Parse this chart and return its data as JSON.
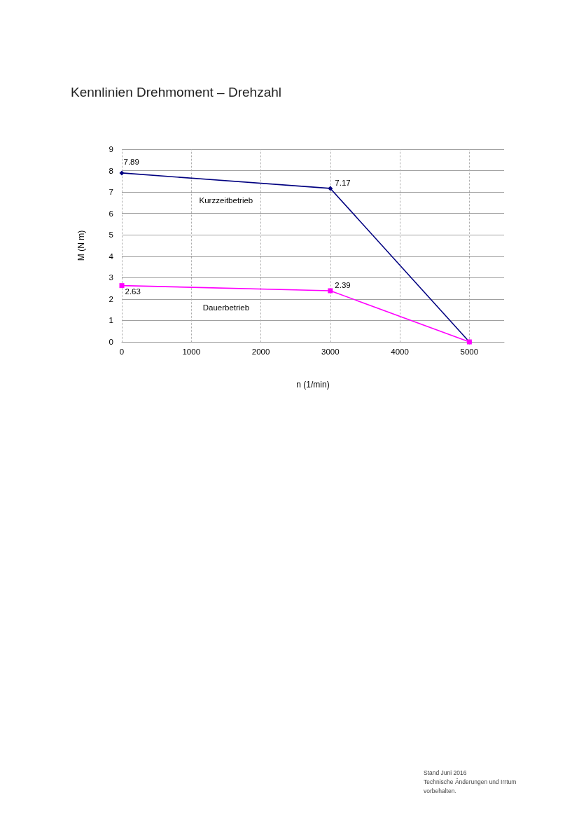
{
  "chart_data": {
    "type": "line",
    "title": "Kennlinien Drehmoment – Drehzahl",
    "xlabel": "n (1/min)",
    "ylabel": "M (N m)",
    "x": [
      0,
      3000,
      5000
    ],
    "series": [
      {
        "name": "Kurzzeitbetrieb",
        "color": "#000080",
        "marker": "diamond",
        "values": [
          7.89,
          7.17,
          0
        ],
        "value_labels": [
          "7.89",
          "7.17",
          null
        ]
      },
      {
        "name": "Dauerbetrieb",
        "color": "#ff00ff",
        "marker": "square",
        "values": [
          2.63,
          2.39,
          0
        ],
        "value_labels": [
          "2.63",
          "2.39",
          null
        ]
      }
    ],
    "xlim": [
      0,
      5500
    ],
    "xticks": [
      0,
      1000,
      2000,
      3000,
      4000,
      5000
    ],
    "ylim": [
      0,
      9
    ],
    "yticks": [
      0,
      1,
      2,
      3,
      4,
      5,
      6,
      7,
      8,
      9
    ],
    "grid": true,
    "annotations": [
      "Stand Juni 2016",
      "Technische Änderungen und Irrtum vorbehalten."
    ]
  }
}
